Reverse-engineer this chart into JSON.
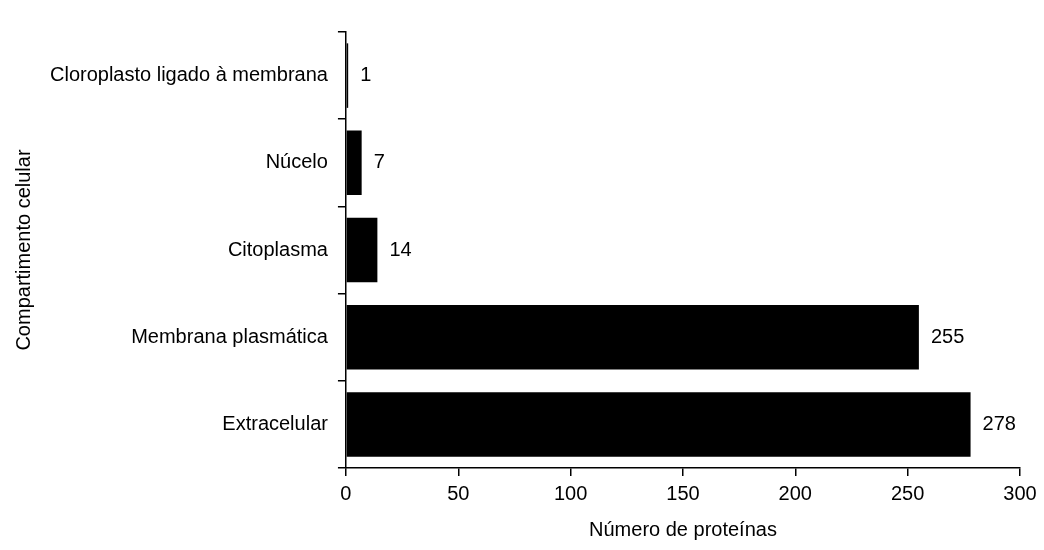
{
  "chart_data": {
    "type": "bar",
    "orientation": "horizontal",
    "categories": [
      "Cloroplasto ligado à membrana",
      "Núcelo",
      "Citoplasma",
      "Membrana plasmática",
      "Extracelular"
    ],
    "values": [
      1,
      7,
      14,
      255,
      278
    ],
    "color": "#000000",
    "xlim": [
      0,
      300
    ],
    "xticks": [
      0,
      50,
      100,
      150,
      200,
      250,
      300
    ],
    "xlabel": "Número de proteínas",
    "ylabel": "Compartimento celular",
    "data_labels": true,
    "grid": false,
    "legend": false
  }
}
